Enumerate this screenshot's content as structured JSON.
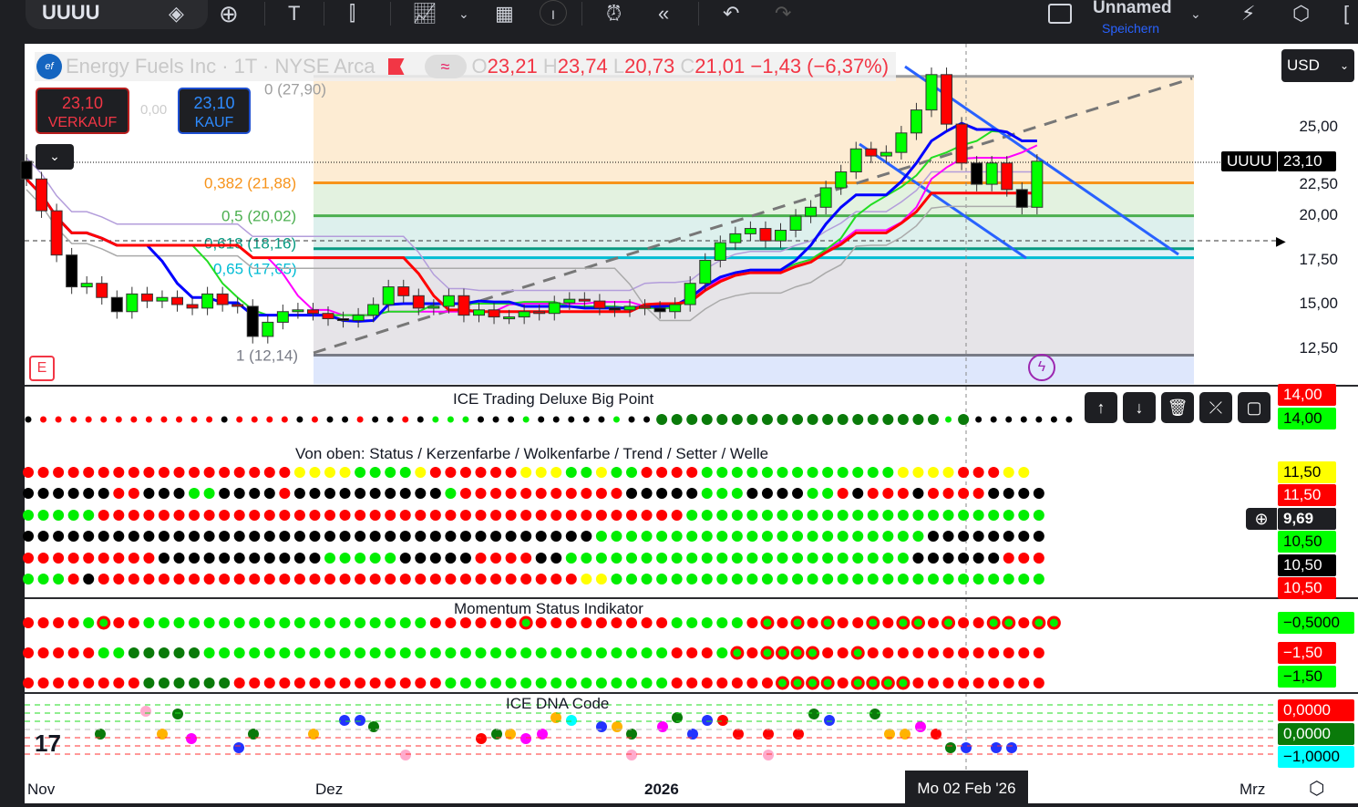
{
  "toolbar": {
    "symbol": "UUUU",
    "layout_name": "Unnamed",
    "save_label": "Speichern",
    "icons": [
      "diamond-icon",
      "add-symbol-icon",
      "text-icon",
      "candles-icon",
      "indicators-icon",
      "chevron-down-icon",
      "layouts-icon",
      "info-icon",
      "alert-icon",
      "replay-icon",
      "undo-icon",
      "redo-icon",
      "fullscreen-icon",
      "quick-search-icon",
      "settings-icon",
      "camera-icon"
    ]
  },
  "legend": {
    "title": "Energy Fuels Inc · 1T · NYSE Arca",
    "o_label": "O",
    "o": "23,21",
    "h_label": "H",
    "h": "23,74",
    "l_label": "L",
    "l": "20,73",
    "c_label": "C",
    "c": "21,01",
    "change": "−1,43 (−6,37%)",
    "logo": "ef"
  },
  "trade": {
    "sell_price": "23,10",
    "sell_label": "VERKAUF",
    "spread": "0,00",
    "buy_price": "23,10",
    "buy_label": "KAUF"
  },
  "currency": "USD",
  "fib": [
    {
      "label": "0 (27,90)",
      "price": 27.9,
      "color": "#9e9e9e"
    },
    {
      "label": "0,382 (21,88)",
      "price": 21.88,
      "color": "#f7931a"
    },
    {
      "label": "0,5 (20,02)",
      "price": 20.02,
      "color": "#4caf50"
    },
    {
      "label": "0,618 (18,16)",
      "price": 18.16,
      "color": "#089981"
    },
    {
      "label": "0,65 (17,65)",
      "price": 17.65,
      "color": "#00bcd4"
    },
    {
      "label": "1 (12,14)",
      "price": 12.14,
      "color": "#787b86"
    }
  ],
  "price_axis": [
    "25,00",
    "22,50",
    "20,00",
    "17,50",
    "15,00",
    "12,50"
  ],
  "price_badge": {
    "symbol": "UUUU",
    "price": "23,10"
  },
  "candles_close": [
    22.1,
    20.3,
    17.8,
    16.0,
    16.2,
    15.4,
    14.6,
    15.6,
    15.2,
    15.4,
    15.0,
    14.8,
    15.6,
    15.0,
    14.9,
    13.2,
    14.0,
    14.6,
    14.7,
    14.5,
    14.2,
    14.1,
    14.4,
    15.0,
    16.0,
    15.5,
    14.8,
    14.9,
    15.5,
    14.4,
    14.7,
    14.3,
    14.3,
    14.6,
    14.5,
    15.1,
    15.3,
    15.2,
    14.8,
    14.7,
    14.9,
    14.8,
    14.6,
    15.0,
    16.2,
    17.5,
    18.5,
    19.0,
    19.3,
    18.6,
    19.2,
    20.0,
    20.5,
    21.6,
    22.5,
    23.8,
    23.4,
    23.6,
    24.7,
    26.0,
    28.0,
    25.2,
    23.0,
    21.8,
    23.0,
    21.5,
    20.5,
    23.1
  ],
  "panes": [
    {
      "title": "ICE Trading Deluxe Big Point",
      "rows": [
        "krrrrrrrrrrrrkrrrrkrkkrkkrkgggkkkgkkkkkgkkGGGGGGGGGGGGGGGGGGGgGkkkkkkk"
      ],
      "badges": [
        {
          "v": "14,00",
          "bg": "#ff0000",
          "fg": "#fff"
        },
        {
          "v": "14,00",
          "bg": "#00ff00",
          "fg": "#000"
        }
      ]
    },
    {
      "title": "Von oben: Status / Kerzenfarbe / Wolkenfarbe / Trend / Setter / Welle",
      "rows": [
        "rrrrrrrrrrrrrrrrrryyyyggggyrrrrrryyyggyggrrrrgggggggggggggyyyyrrryy",
        "kkkkkkrrkkkggkkkkrkkkkkkkkkkgrrrrrrrrrrrkkkkkgggkkkkggrkrrrkrrrrkkkk",
        "gggggrrrrrrrrrrrrrrrrrrrrrrrrrrrrrrrrrrrrrrrgggggggggggggggggggggggg",
        "kkkkkkkkkkkkkkkkkkkkkkkkkkkkkkkkkkkkkkggggggggggggggggggggggkkkkkkkk",
        "rrrrrrrrrkkkkkkkkkkkgggggkkkkkrrrrkkgggggggggggggggggggggggkkkkkkrrr",
        "gggrkrrrrrrrrrrrrrrrrrrrrrrrrrrrrrrrryyggggggggggggggggggggggggggggg"
      ],
      "badges": [
        {
          "v": "11,50",
          "bg": "#ffff00",
          "fg": "#000"
        },
        {
          "v": "11,50",
          "bg": "#ff0000",
          "fg": "#fff"
        },
        {
          "v": "10,50",
          "bg": "#00ff00",
          "fg": "#000"
        },
        {
          "v": "10,50",
          "bg": "#000000",
          "fg": "#fff"
        },
        {
          "v": "10,50",
          "bg": "#ff0000",
          "fg": "#fff"
        }
      ]
    },
    {
      "title": "Momentum Status Indikator",
      "rows": [
        "rrrrgRrrgggggggggggggggggggrrrrrrRrrrrrrrrrgggggrRrRrRrrRrRRrRrrRRrRR",
        "rrrrrggGGGGGgggggggggggggggggggggggggggggggrrrgRrRRRRrrRrrrrrrrrrrrr",
        "rrrrrrrrGGGGGGrrrrrrrrrrrrrrgggggggggggggggrrrrrrrRRRRrRRRRrrrrrrrrr"
      ],
      "badges": [
        {
          "v": "−0,5000",
          "bg": "#00ff00",
          "fg": "#000"
        },
        {
          "v": "−1,50",
          "bg": "#ff0000",
          "fg": "#fff"
        },
        {
          "v": "−1,50",
          "bg": "#00ff00",
          "fg": "#000"
        }
      ]
    },
    {
      "title": "ICE DNA Code",
      "badges": [
        {
          "v": "0,0000",
          "bg": "#ff0000",
          "fg": "#fff"
        },
        {
          "v": "0,0000",
          "bg": "#0a7a0a",
          "fg": "#fff"
        },
        {
          "v": "−1,0000",
          "bg": "#00ffff",
          "fg": "#000"
        }
      ]
    }
  ],
  "crosshair": {
    "value": "9,69",
    "date": "Mo 02 Feb '26"
  },
  "time_axis": [
    "Nov",
    "Dez",
    "2026",
    "Mrz"
  ],
  "colors": {
    "up": "#00ff00",
    "down": "#ff0000",
    "blue_line": "#0000ff",
    "red_line": "#ff0000",
    "accent": "#2962ff"
  }
}
